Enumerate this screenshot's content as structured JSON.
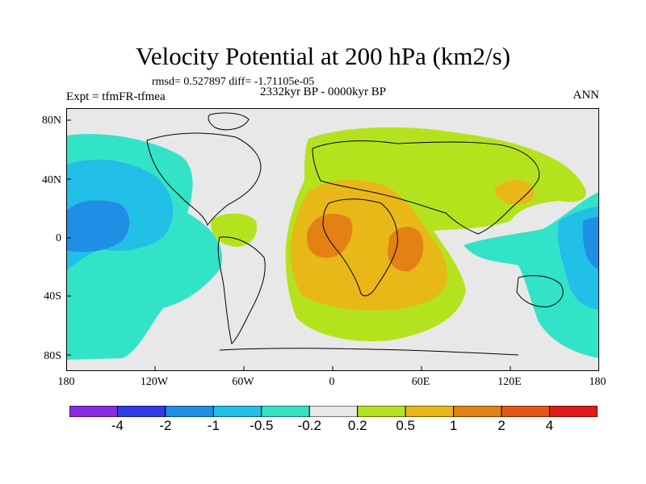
{
  "title": "Velocity Potential at 200 hPa (km2/s)",
  "stats": "rmsd= 0.527897 diff= -1.71105e-05",
  "experiment": "Expt = tfmFR-tfmea",
  "period": "2332kyr BP - 0000kyr BP",
  "season": "ANN",
  "lat_labels": [
    "80N",
    "40N",
    "0",
    "40S",
    "80S"
  ],
  "lon_labels": [
    "180",
    "120W",
    "60W",
    "0",
    "60E",
    "120E",
    "180"
  ],
  "colorbar": {
    "colors": [
      "#8a2be2",
      "#2f3ce6",
      "#1f8fe6",
      "#22bfe6",
      "#33e3c8",
      "#e8e8e8",
      "#b4e31e",
      "#e8b718",
      "#e38114",
      "#e35614",
      "#e31a1a"
    ],
    "labels": [
      "-4",
      "-2",
      "-1",
      "-0.5",
      "-0.2",
      "0.2",
      "0.5",
      "1",
      "2",
      "4"
    ]
  },
  "map": {
    "background_color": "#e8e8e8",
    "regions": [
      "Pacific negative centre",
      "Atlantic-Africa positive centre",
      "Western Pacific negative centre"
    ]
  }
}
